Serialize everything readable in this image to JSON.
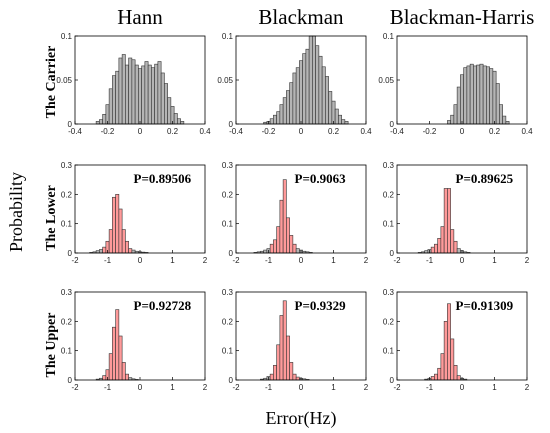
{
  "figure": {
    "xlabel": "Error(Hz)",
    "ylabel": "Probability",
    "column_titles": [
      "Hann",
      "Blackman",
      "Blackman-Harris"
    ],
    "row_labels": [
      "The Carrier",
      "The Lower",
      "The Upper"
    ]
  },
  "colors": {
    "gray_bar": "#b5b5b5",
    "red_bar": "#ff9a9a",
    "edge": "#333333"
  },
  "chart_data": [
    {
      "type": "bar",
      "title": "",
      "row": "The Carrier",
      "column": "Hann",
      "xlim": [
        -0.4,
        0.4
      ],
      "ylim": [
        0,
        0.1
      ],
      "xticks": [
        "-0.4",
        "-0.2",
        "0",
        "0.2",
        "0.4"
      ],
      "yticks": [
        "0",
        "0.05",
        "0.1"
      ],
      "bin_centers": [
        -0.26,
        -0.24,
        -0.22,
        -0.2,
        -0.18,
        -0.16,
        -0.14,
        -0.12,
        -0.1,
        -0.08,
        -0.06,
        -0.04,
        -0.02,
        0.0,
        0.02,
        0.04,
        0.06,
        0.08,
        0.1,
        0.12,
        0.14,
        0.16,
        0.18,
        0.2,
        0.22,
        0.24,
        0.26
      ],
      "values": [
        0.003,
        0.005,
        0.011,
        0.022,
        0.04,
        0.055,
        0.06,
        0.075,
        0.079,
        0.067,
        0.075,
        0.073,
        0.067,
        0.063,
        0.066,
        0.071,
        0.067,
        0.064,
        0.068,
        0.071,
        0.058,
        0.046,
        0.03,
        0.02,
        0.012,
        0.006,
        0.003
      ],
      "highlight": [
        -1,
        -1
      ],
      "annotation": ""
    },
    {
      "type": "bar",
      "title": "",
      "row": "The Carrier",
      "column": "Blackman",
      "xlim": [
        -0.4,
        0.4
      ],
      "ylim": [
        0,
        0.1
      ],
      "xticks": [
        "-0.4",
        "-0.2",
        "0",
        "0.2",
        "0.4"
      ],
      "yticks": [
        "0",
        "0.05",
        "0.1"
      ],
      "bin_centers": [
        -0.22,
        -0.2,
        -0.18,
        -0.16,
        -0.14,
        -0.12,
        -0.1,
        -0.08,
        -0.06,
        -0.04,
        -0.02,
        0.0,
        0.02,
        0.04,
        0.06,
        0.08,
        0.1,
        0.12,
        0.14,
        0.16,
        0.18,
        0.2,
        0.22,
        0.24,
        0.26,
        0.28
      ],
      "values": [
        0.002,
        0.003,
        0.006,
        0.01,
        0.014,
        0.022,
        0.03,
        0.038,
        0.047,
        0.058,
        0.064,
        0.072,
        0.08,
        0.085,
        0.1,
        0.1,
        0.089,
        0.077,
        0.065,
        0.054,
        0.037,
        0.026,
        0.017,
        0.01,
        0.005,
        0.003
      ],
      "highlight": [
        -1,
        -1
      ],
      "annotation": ""
    },
    {
      "type": "bar",
      "title": "",
      "row": "The Carrier",
      "column": "Blackman-Harris",
      "xlim": [
        -0.4,
        0.4
      ],
      "ylim": [
        0,
        0.1
      ],
      "xticks": [
        "-0.4",
        "-0.2",
        "0",
        "0.2",
        "0.4"
      ],
      "yticks": [
        "0",
        "0.05",
        "0.1"
      ],
      "bin_centers": [
        -0.08,
        -0.06,
        -0.04,
        -0.02,
        0.0,
        0.02,
        0.04,
        0.06,
        0.08,
        0.1,
        0.12,
        0.14,
        0.16,
        0.18,
        0.2,
        0.22,
        0.24,
        0.26,
        0.28
      ],
      "values": [
        0.004,
        0.01,
        0.022,
        0.042,
        0.056,
        0.064,
        0.066,
        0.068,
        0.066,
        0.067,
        0.068,
        0.066,
        0.065,
        0.063,
        0.06,
        0.046,
        0.022,
        0.009,
        0.003
      ],
      "highlight": [
        -1,
        -1
      ],
      "annotation": ""
    },
    {
      "type": "bar",
      "title": "",
      "row": "The Lower",
      "column": "Hann",
      "xlim": [
        -2,
        2
      ],
      "ylim": [
        0,
        0.3
      ],
      "xticks": [
        "-2",
        "-1",
        "0",
        "1",
        "2"
      ],
      "yticks": [
        "0",
        "0.1",
        "0.2",
        "0.3"
      ],
      "bin_centers": [
        -1.5,
        -1.4,
        -1.3,
        -1.2,
        -1.1,
        -1.0,
        -0.9,
        -0.8,
        -0.7,
        -0.6,
        -0.5,
        -0.4,
        -0.3,
        -0.2,
        -0.1,
        0.0,
        0.1,
        0.2
      ],
      "values": [
        0.002,
        0.004,
        0.008,
        0.012,
        0.02,
        0.04,
        0.08,
        0.19,
        0.2,
        0.15,
        0.08,
        0.04,
        0.015,
        0.01,
        0.006,
        0.004,
        0.003,
        0.002
      ],
      "highlight": [
        4,
        12
      ],
      "annotation": "P=0.89506"
    },
    {
      "type": "bar",
      "title": "",
      "row": "The Lower",
      "column": "Blackman",
      "xlim": [
        -2,
        2
      ],
      "ylim": [
        0,
        0.3
      ],
      "xticks": [
        "-2",
        "-1",
        "0",
        "1",
        "2"
      ],
      "yticks": [
        "0",
        "0.1",
        "0.2",
        "0.3"
      ],
      "bin_centers": [
        -1.4,
        -1.3,
        -1.2,
        -1.1,
        -1.0,
        -0.9,
        -0.8,
        -0.7,
        -0.6,
        -0.5,
        -0.4,
        -0.3,
        -0.2,
        -0.1,
        0.0,
        0.1,
        0.2,
        0.3
      ],
      "values": [
        0.002,
        0.004,
        0.006,
        0.01,
        0.015,
        0.03,
        0.045,
        0.09,
        0.18,
        0.25,
        0.12,
        0.06,
        0.03,
        0.015,
        0.01,
        0.006,
        0.004,
        0.002
      ],
      "highlight": [
        5,
        12
      ],
      "annotation": "P=0.9063"
    },
    {
      "type": "bar",
      "title": "",
      "row": "The Lower",
      "column": "Blackman-Harris",
      "xlim": [
        -2,
        2
      ],
      "ylim": [
        0,
        0.3
      ],
      "xticks": [
        "-2",
        "-1",
        "0",
        "1",
        "2"
      ],
      "yticks": [
        "0",
        "0.1",
        "0.2",
        "0.3"
      ],
      "bin_centers": [
        -1.3,
        -1.2,
        -1.1,
        -1.0,
        -0.9,
        -0.8,
        -0.7,
        -0.6,
        -0.5,
        -0.4,
        -0.3,
        -0.2,
        -0.1,
        0.0,
        0.1,
        0.2
      ],
      "values": [
        0.002,
        0.004,
        0.008,
        0.012,
        0.02,
        0.03,
        0.05,
        0.09,
        0.22,
        0.22,
        0.08,
        0.04,
        0.015,
        0.008,
        0.004,
        0.002
      ],
      "highlight": [
        4,
        11
      ],
      "annotation": "P=0.89625"
    },
    {
      "type": "bar",
      "title": "",
      "row": "The Upper",
      "column": "Hann",
      "xlim": [
        -2,
        2
      ],
      "ylim": [
        0,
        0.3
      ],
      "xticks": [
        "-2",
        "-1",
        "0",
        "1",
        "2"
      ],
      "yticks": [
        "0",
        "0.1",
        "0.2",
        "0.3"
      ],
      "bin_centers": [
        -1.3,
        -1.2,
        -1.1,
        -1.0,
        -0.9,
        -0.8,
        -0.7,
        -0.6,
        -0.5,
        -0.4,
        -0.3,
        -0.2,
        -0.1
      ],
      "values": [
        0.003,
        0.006,
        0.015,
        0.035,
        0.09,
        0.18,
        0.24,
        0.15,
        0.06,
        0.02,
        0.008,
        0.004,
        0.002
      ],
      "highlight": [
        2,
        9
      ],
      "annotation": "P=0.92728"
    },
    {
      "type": "bar",
      "title": "",
      "row": "The Upper",
      "column": "Blackman",
      "xlim": [
        -2,
        2
      ],
      "ylim": [
        0,
        0.3
      ],
      "xticks": [
        "-2",
        "-1",
        "0",
        "1",
        "2"
      ],
      "yticks": [
        "0",
        "0.1",
        "0.2",
        "0.3"
      ],
      "bin_centers": [
        -1.2,
        -1.1,
        -1.0,
        -0.9,
        -0.8,
        -0.7,
        -0.6,
        -0.5,
        -0.4,
        -0.3,
        -0.2,
        -0.1,
        0.0,
        0.1,
        0.2
      ],
      "values": [
        0.003,
        0.006,
        0.012,
        0.02,
        0.05,
        0.12,
        0.22,
        0.27,
        0.15,
        0.06,
        0.02,
        0.01,
        0.006,
        0.004,
        0.002
      ],
      "highlight": [
        3,
        11
      ],
      "annotation": "P=0.9329"
    },
    {
      "type": "bar",
      "title": "",
      "row": "The Upper",
      "column": "Blackman-Harris",
      "xlim": [
        -2,
        2
      ],
      "ylim": [
        0,
        0.3
      ],
      "xticks": [
        "-2",
        "-1",
        "0",
        "1",
        "2"
      ],
      "yticks": [
        "0",
        "0.1",
        "0.2",
        "0.3"
      ],
      "bin_centers": [
        -1.1,
        -1.0,
        -0.9,
        -0.8,
        -0.7,
        -0.6,
        -0.5,
        -0.4,
        -0.3,
        -0.2,
        -0.1,
        0.0,
        0.1
      ],
      "values": [
        0.003,
        0.006,
        0.012,
        0.02,
        0.04,
        0.09,
        0.2,
        0.26,
        0.14,
        0.05,
        0.015,
        0.006,
        0.003
      ],
      "highlight": [
        2,
        10
      ],
      "annotation": "P=0.91309"
    }
  ]
}
